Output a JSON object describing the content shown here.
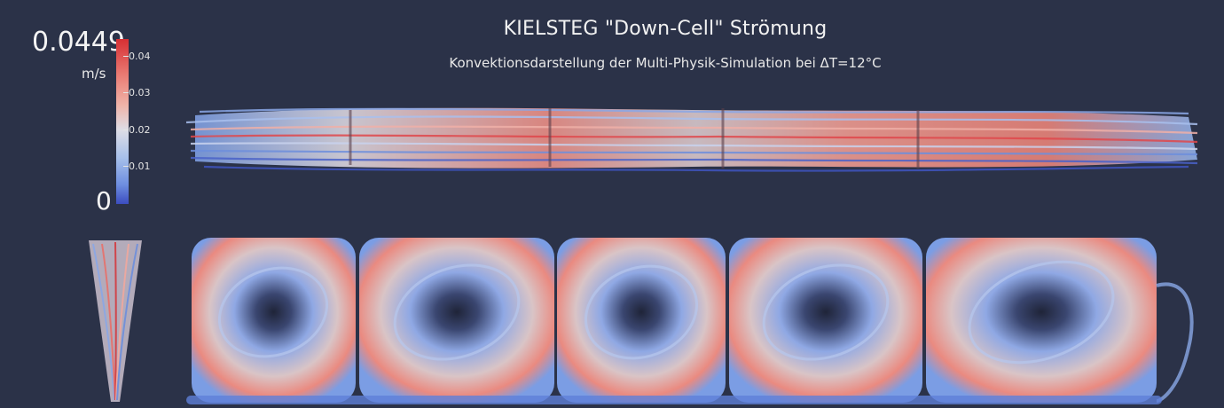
{
  "title": "KIELSTEG \"Down-Cell\" Strömung",
  "subtitle": "Konvektionsdarstellung der Multi-Physik-Simulation bei ΔT=12°C",
  "legend": {
    "max": "0.0449",
    "unit": "m/s",
    "min": "0",
    "ticks": [
      "0.04",
      "0.03",
      "0.02",
      "0.01"
    ]
  },
  "colors": {
    "background": "#2b3248",
    "high": "#d62f33",
    "mid": "#dedde6",
    "low": "#3b4cc0"
  }
}
